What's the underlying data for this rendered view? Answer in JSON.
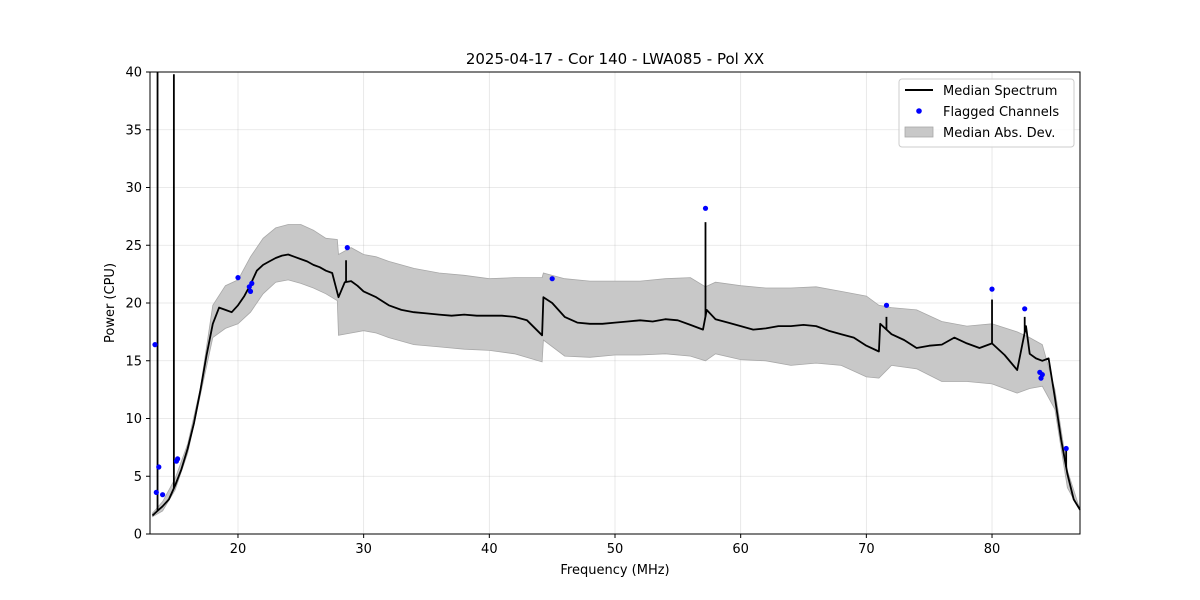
{
  "chart_data": {
    "type": "line",
    "title": "2025-04-17 - Cor 140 - LWA085 - Pol XX",
    "xlabel": "Frequency (MHz)",
    "ylabel": "Power (CPU)",
    "xlim": [
      13.0,
      87.0
    ],
    "ylim": [
      0,
      40
    ],
    "xticks": [
      20,
      30,
      40,
      50,
      60,
      70,
      80
    ],
    "yticks": [
      0,
      5,
      10,
      15,
      20,
      25,
      30,
      35,
      40
    ],
    "grid": true,
    "legend_position": "top-right",
    "legend": [
      {
        "label": "Median Spectrum",
        "kind": "line",
        "color": "#000000"
      },
      {
        "label": "Flagged Channels",
        "kind": "marker",
        "color": "#0000ff"
      },
      {
        "label": "Median Abs. Dev.",
        "kind": "patch",
        "color": "#c8c8c8"
      }
    ],
    "series": [
      {
        "name": "Median Spectrum",
        "x": [
          13.2,
          13.6,
          14.0,
          14.5,
          15.0,
          15.5,
          16.0,
          16.5,
          17.0,
          17.5,
          18.0,
          18.5,
          19.0,
          19.5,
          20.0,
          20.5,
          21.0,
          21.5,
          22.0,
          22.5,
          23.0,
          23.5,
          24.0,
          24.5,
          25.0,
          25.5,
          26.0,
          26.5,
          27.0,
          27.5,
          28.0,
          28.5,
          29.0,
          29.5,
          30.0,
          31.0,
          32.0,
          33.0,
          34.0,
          35.0,
          36.0,
          37.0,
          38.0,
          39.0,
          40.0,
          41.0,
          42.0,
          43.0,
          44.2,
          44.3,
          45.0,
          46.0,
          47.0,
          48.0,
          49.0,
          50.0,
          51.0,
          52.0,
          53.0,
          54.0,
          55.0,
          56.0,
          57.0,
          57.3,
          58.0,
          59.0,
          60.0,
          61.0,
          62.0,
          63.0,
          64.0,
          65.0,
          66.0,
          67.0,
          68.0,
          69.0,
          70.0,
          71.0,
          71.1,
          72.0,
          73.0,
          74.0,
          75.0,
          76.0,
          77.0,
          78.0,
          79.0,
          80.0,
          81.0,
          82.0,
          82.7,
          83.0,
          83.5,
          84.0,
          84.5,
          85.0,
          85.5,
          86.0,
          86.5,
          87.0
        ],
        "values": [
          1.6,
          2.0,
          2.4,
          3.0,
          4.2,
          5.6,
          7.4,
          9.6,
          12.4,
          15.5,
          18.2,
          19.6,
          19.4,
          19.2,
          19.8,
          20.6,
          21.6,
          22.8,
          23.3,
          23.6,
          23.9,
          24.1,
          24.2,
          24.0,
          23.8,
          23.6,
          23.3,
          23.1,
          22.8,
          22.6,
          20.5,
          21.8,
          21.9,
          21.5,
          21.0,
          20.5,
          19.8,
          19.4,
          19.2,
          19.1,
          19.0,
          18.9,
          19.0,
          18.9,
          18.9,
          18.9,
          18.8,
          18.5,
          17.2,
          20.5,
          20.0,
          18.8,
          18.3,
          18.2,
          18.2,
          18.3,
          18.4,
          18.5,
          18.4,
          18.6,
          18.5,
          18.1,
          17.7,
          19.4,
          18.6,
          18.3,
          18.0,
          17.7,
          17.8,
          18.0,
          18.0,
          18.1,
          18.0,
          17.6,
          17.3,
          17.0,
          16.3,
          15.8,
          18.2,
          17.3,
          16.8,
          16.1,
          16.3,
          16.4,
          17.0,
          16.5,
          16.1,
          16.5,
          15.5,
          14.2,
          18.0,
          15.6,
          15.2,
          15.0,
          15.2,
          11.8,
          8.2,
          5.2,
          3.0,
          2.1
        ],
        "spikes": [
          {
            "x": 13.6,
            "y": 40.0
          },
          {
            "x": 14.9,
            "y": 39.8
          },
          {
            "x": 28.6,
            "y": 23.7
          },
          {
            "x": 57.2,
            "y": 27.0
          },
          {
            "x": 71.6,
            "y": 18.8
          },
          {
            "x": 80.0,
            "y": 20.3
          },
          {
            "x": 82.6,
            "y": 18.8
          },
          {
            "x": 85.9,
            "y": 7.2
          }
        ]
      },
      {
        "name": "Median Abs. Dev.",
        "x": [
          13.2,
          14.0,
          15.0,
          16.0,
          17.0,
          18.0,
          19.0,
          20.0,
          21.0,
          22.0,
          23.0,
          24.0,
          25.0,
          26.0,
          27.0,
          27.9,
          28.0,
          29.0,
          30.0,
          31.0,
          32.0,
          33.0,
          34.0,
          36.0,
          38.0,
          40.0,
          42.0,
          44.2,
          44.3,
          46.0,
          48.0,
          50.0,
          52.0,
          54.0,
          56.0,
          57.2,
          58.0,
          60.0,
          62.0,
          64.0,
          66.0,
          68.0,
          70.0,
          71.0,
          72.0,
          74.0,
          76.0,
          78.0,
          80.0,
          82.0,
          83.0,
          84.0,
          85.0,
          86.0,
          87.0
        ],
        "upper": [
          1.8,
          2.8,
          4.8,
          7.8,
          12.6,
          19.8,
          21.5,
          22.0,
          24.0,
          25.6,
          26.5,
          26.8,
          26.8,
          26.3,
          25.6,
          25.5,
          24.2,
          24.8,
          24.2,
          24.0,
          23.6,
          23.3,
          23.0,
          22.6,
          22.4,
          22.1,
          22.2,
          22.2,
          22.6,
          22.1,
          21.9,
          21.9,
          21.9,
          22.1,
          22.2,
          21.4,
          21.8,
          21.5,
          21.3,
          21.3,
          21.4,
          21.0,
          20.6,
          19.8,
          19.6,
          19.4,
          18.4,
          18.0,
          18.2,
          17.5,
          17.0,
          16.4,
          12.5,
          5.5,
          2.1
        ],
        "lower": [
          1.5,
          2.0,
          3.8,
          7.0,
          12.0,
          17.0,
          17.8,
          18.2,
          19.2,
          20.8,
          21.8,
          22.0,
          21.7,
          21.3,
          20.8,
          20.2,
          17.2,
          17.4,
          17.6,
          17.4,
          17.0,
          16.7,
          16.4,
          16.2,
          16.0,
          15.9,
          15.6,
          14.9,
          16.8,
          15.4,
          15.3,
          15.5,
          15.5,
          15.6,
          15.4,
          15.0,
          15.6,
          15.1,
          15.0,
          14.6,
          14.8,
          14.6,
          13.6,
          13.5,
          14.6,
          14.3,
          13.2,
          13.2,
          13.0,
          12.2,
          12.6,
          12.8,
          10.8,
          4.0,
          2.0
        ]
      },
      {
        "name": "Flagged Channels",
        "x": [
          13.4,
          13.5,
          13.7,
          14.0,
          15.1,
          15.2,
          20.0,
          20.9,
          21.0,
          21.1,
          28.7,
          45.0,
          57.2,
          71.6,
          80.0,
          82.6,
          83.8,
          83.9,
          84.0,
          85.9
        ],
        "values": [
          16.4,
          3.6,
          5.8,
          3.4,
          6.3,
          6.5,
          22.2,
          21.4,
          21.0,
          21.7,
          24.8,
          22.1,
          28.2,
          19.8,
          21.2,
          19.5,
          14.0,
          13.5,
          13.8,
          7.4
        ]
      }
    ]
  }
}
